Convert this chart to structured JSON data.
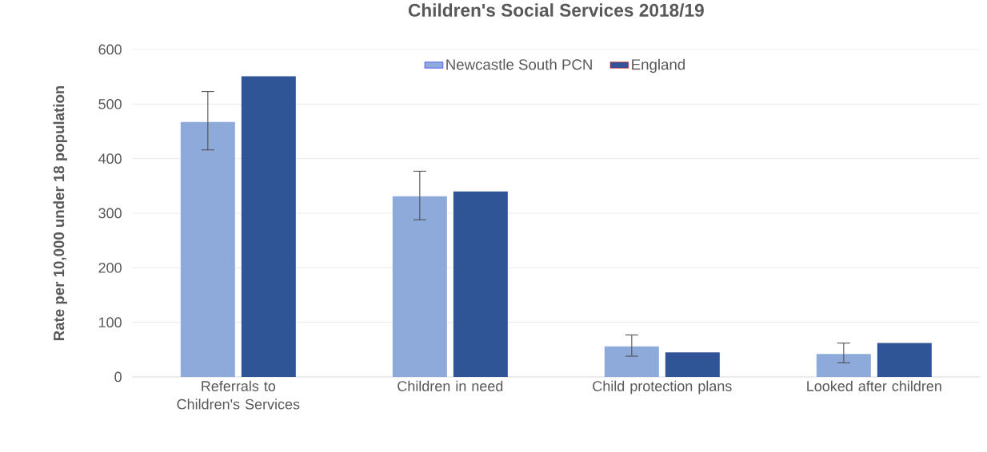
{
  "chart_data": {
    "type": "bar",
    "title": "Children's Social Services 2018/19",
    "ylabel": "Rate per 10,000 under 18 population",
    "categories": [
      "Referrals to Children's Services",
      "Children in need",
      "Child protection plans",
      "Looked after children"
    ],
    "series": [
      {
        "name": "Newcastle South PCN",
        "color": "#8eaadb",
        "values": [
          467,
          331,
          56,
          42
        ],
        "errors": [
          [
            416,
            523
          ],
          [
            288,
            377
          ],
          [
            38,
            77
          ],
          [
            26,
            62
          ]
        ]
      },
      {
        "name": "England",
        "color": "#2f5597",
        "values": [
          551,
          340,
          45,
          62
        ]
      }
    ],
    "ylim": [
      0,
      600
    ],
    "yticks": [
      0,
      100,
      200,
      300,
      400,
      500,
      600
    ],
    "grid": "y",
    "legend": "top"
  }
}
